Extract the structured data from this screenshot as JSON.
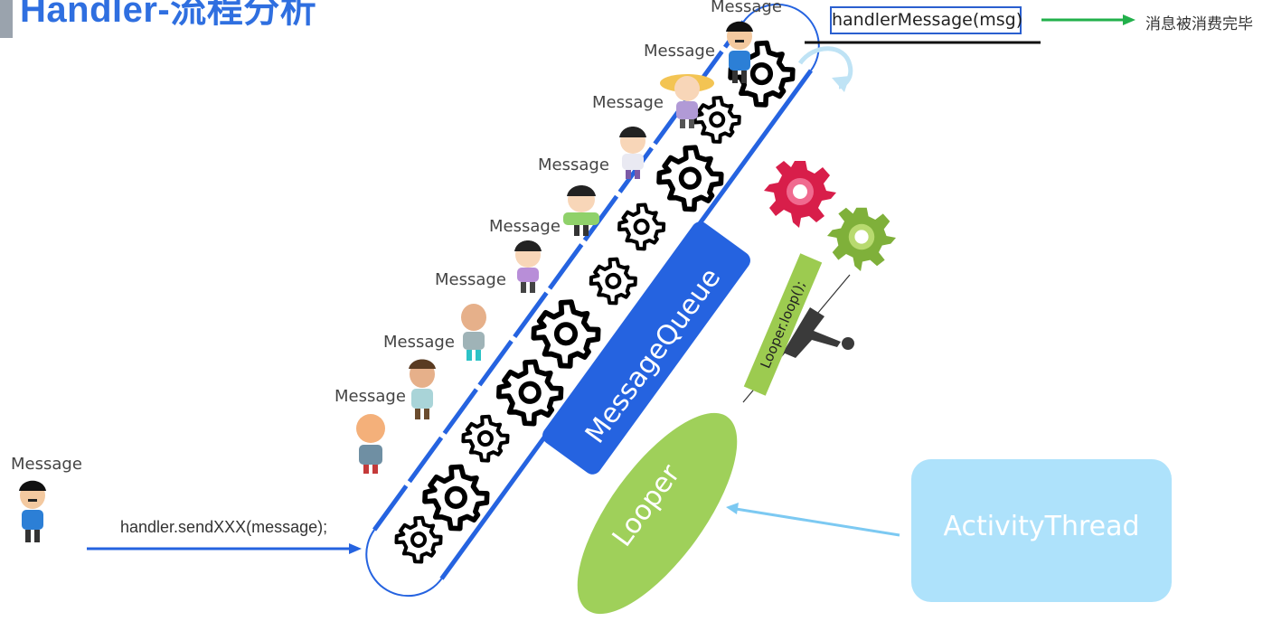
{
  "title": "Handler-流程分析",
  "send_call": "handler.sendXXX(message);",
  "message_label": "Message",
  "handle_message": "handlerMessage(msg)",
  "consumed_text": "消息被消费完毕",
  "queue_label": "MessageQueue",
  "looper_label": "Looper",
  "loop_call": "Looper.loop();",
  "activity_thread": "ActivityThread",
  "colors": {
    "title": "#2f6fe0",
    "queue_box": "#2563e0",
    "looper": "#9fd05a",
    "loop_label_bg": "#9ccb50",
    "activity_box": "#aee2fb",
    "send_arrow": "#2563e0",
    "consumed_arrow": "#22b04b",
    "activity_arrow": "#7cc9f2",
    "gear_red": "#d81e4a",
    "gear_green": "#7fb03a"
  }
}
